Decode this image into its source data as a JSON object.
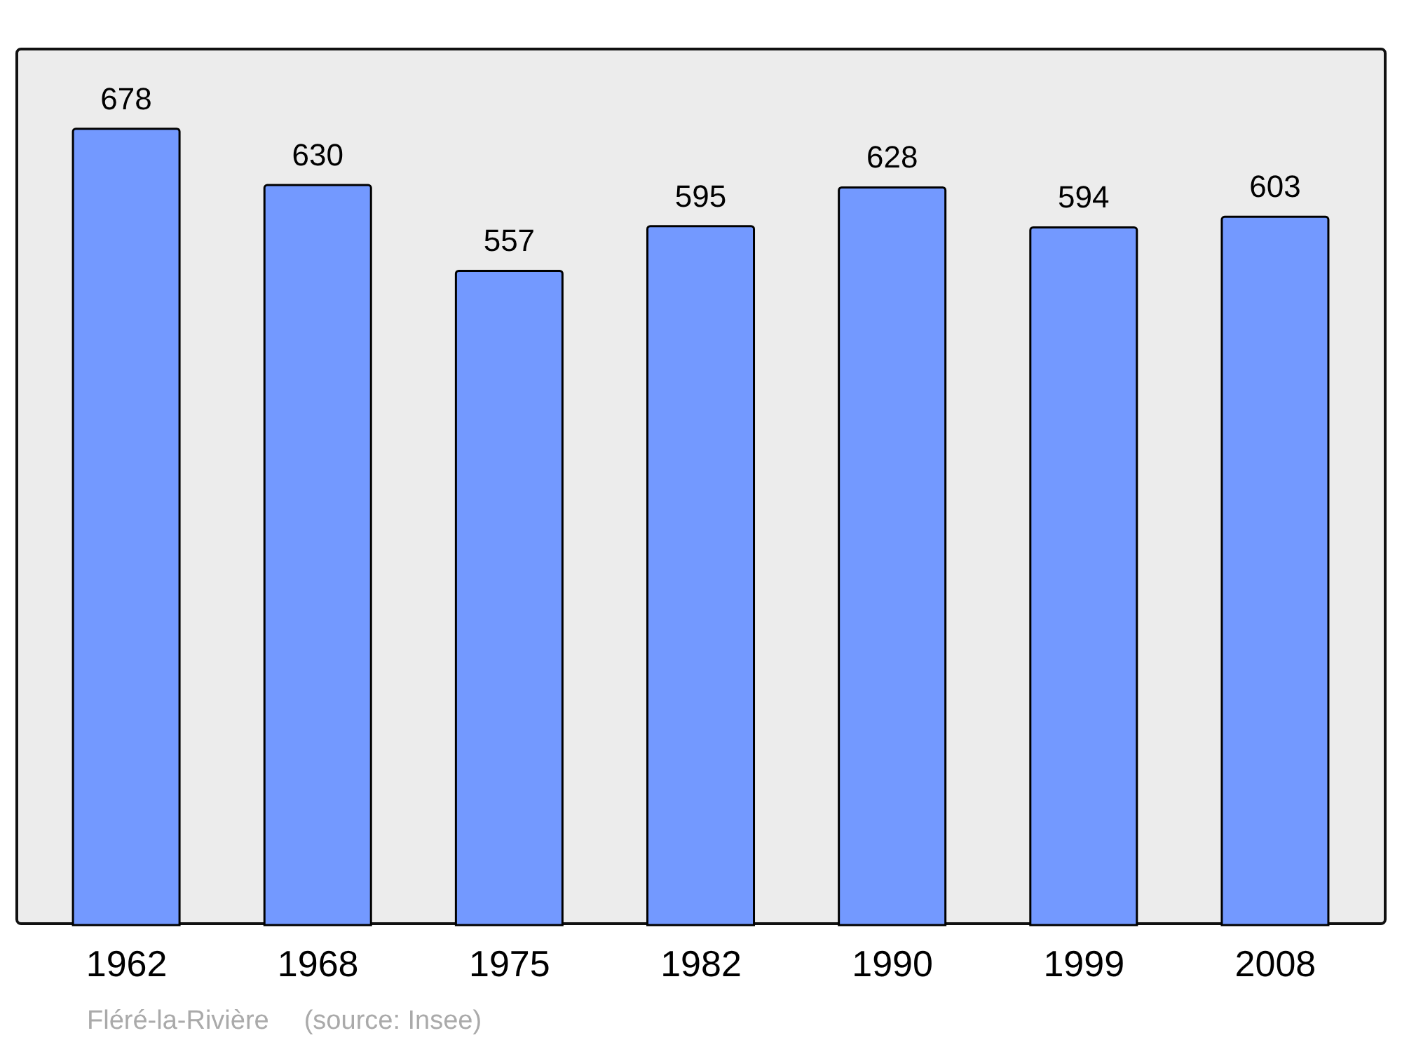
{
  "chart_data": {
    "type": "bar",
    "categories": [
      "1962",
      "1968",
      "1975",
      "1982",
      "1990",
      "1999",
      "2008"
    ],
    "values": [
      678,
      630,
      557,
      595,
      628,
      594,
      603
    ],
    "color": "#7399ff",
    "data_labels": true,
    "annotations": [
      "Fléré-la-Rivière",
      "(source: Insee)"
    ]
  }
}
